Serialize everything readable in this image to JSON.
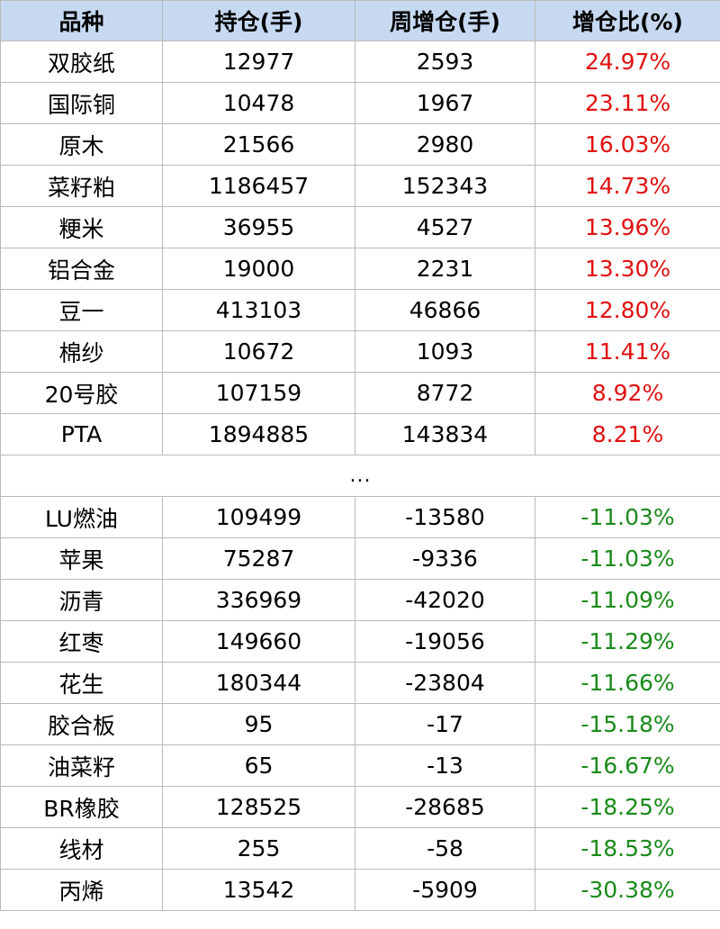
{
  "colors": {
    "header_bg": "#c6d9f1",
    "increase": "#e01010",
    "decrease": "#1a8a1a",
    "border": "#b9b9b9"
  },
  "table": {
    "headers": [
      "品种",
      "持仓(手)",
      "周增仓(手)",
      "增仓比(%)"
    ],
    "top_rows": [
      {
        "name": "双胶纸",
        "position": "12977",
        "weekly_change": "2593",
        "ratio": "24.97%"
      },
      {
        "name": "国际铜",
        "position": "10478",
        "weekly_change": "1967",
        "ratio": "23.11%"
      },
      {
        "name": "原木",
        "position": "21566",
        "weekly_change": "2980",
        "ratio": "16.03%"
      },
      {
        "name": "菜籽粕",
        "position": "1186457",
        "weekly_change": "152343",
        "ratio": "14.73%"
      },
      {
        "name": "粳米",
        "position": "36955",
        "weekly_change": "4527",
        "ratio": "13.96%"
      },
      {
        "name": "铝合金",
        "position": "19000",
        "weekly_change": "2231",
        "ratio": "13.30%"
      },
      {
        "name": "豆一",
        "position": "413103",
        "weekly_change": "46866",
        "ratio": "12.80%"
      },
      {
        "name": "棉纱",
        "position": "10672",
        "weekly_change": "1093",
        "ratio": "11.41%"
      },
      {
        "name": "20号胶",
        "position": "107159",
        "weekly_change": "8772",
        "ratio": "8.92%"
      },
      {
        "name": "PTA",
        "position": "1894885",
        "weekly_change": "143834",
        "ratio": "8.21%"
      }
    ],
    "separator": "...",
    "bottom_rows": [
      {
        "name": "LU燃油",
        "position": "109499",
        "weekly_change": "-13580",
        "ratio": "-11.03%"
      },
      {
        "name": "苹果",
        "position": "75287",
        "weekly_change": "-9336",
        "ratio": "-11.03%"
      },
      {
        "name": "沥青",
        "position": "336969",
        "weekly_change": "-42020",
        "ratio": "-11.09%"
      },
      {
        "name": "红枣",
        "position": "149660",
        "weekly_change": "-19056",
        "ratio": "-11.29%"
      },
      {
        "name": "花生",
        "position": "180344",
        "weekly_change": "-23804",
        "ratio": "-11.66%"
      },
      {
        "name": "胶合板",
        "position": "95",
        "weekly_change": "-17",
        "ratio": "-15.18%"
      },
      {
        "name": "油菜籽",
        "position": "65",
        "weekly_change": "-13",
        "ratio": "-16.67%"
      },
      {
        "name": "BR橡胶",
        "position": "128525",
        "weekly_change": "-28685",
        "ratio": "-18.25%"
      },
      {
        "name": "线材",
        "position": "255",
        "weekly_change": "-58",
        "ratio": "-18.53%"
      },
      {
        "name": "丙烯",
        "position": "13542",
        "weekly_change": "-5909",
        "ratio": "-30.38%"
      }
    ]
  }
}
